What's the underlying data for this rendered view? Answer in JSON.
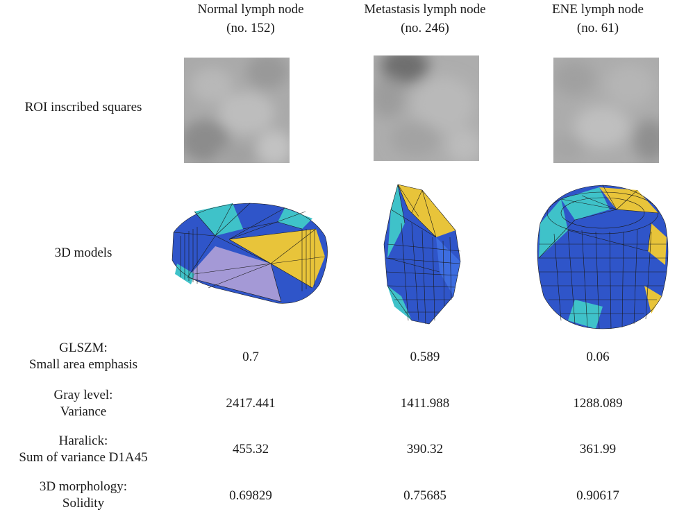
{
  "columns": [
    {
      "line1": "Normal lymph node",
      "line2": "(no. 152)"
    },
    {
      "line1": "Metastasis lymph node",
      "line2": "(no. 246)"
    },
    {
      "line1": "ENE lymph node",
      "line2": "(no. 61)"
    }
  ],
  "rows": {
    "roi": {
      "label": "ROI  inscribed squares"
    },
    "models": {
      "label": "3D models"
    },
    "glszm": {
      "line1": "GLSZM:",
      "line2": "Small area emphasis",
      "values": [
        "0.7",
        "0.589",
        "0.06"
      ]
    },
    "gray": {
      "line1": "Gray level:",
      "line2": "Variance",
      "values": [
        "2417.441",
        "1411.988",
        "1288.089"
      ]
    },
    "haralick": {
      "line1": "Haralick:",
      "line2": "Sum of variance  D1A45",
      "values": [
        "455.32",
        "390.32",
        "361.99"
      ]
    },
    "morph": {
      "line1": "3D morphology:",
      "line2": "Solidity",
      "values": [
        "0.69829",
        "0.75685",
        "0.90617"
      ]
    }
  },
  "colors": {
    "model_blue": "#2f55c9",
    "model_yellow": "#e8c43a",
    "model_cyan": "#3fc2c9",
    "mesh_line": "#1a1a1a",
    "roi_gray": "#a6a6a6"
  }
}
